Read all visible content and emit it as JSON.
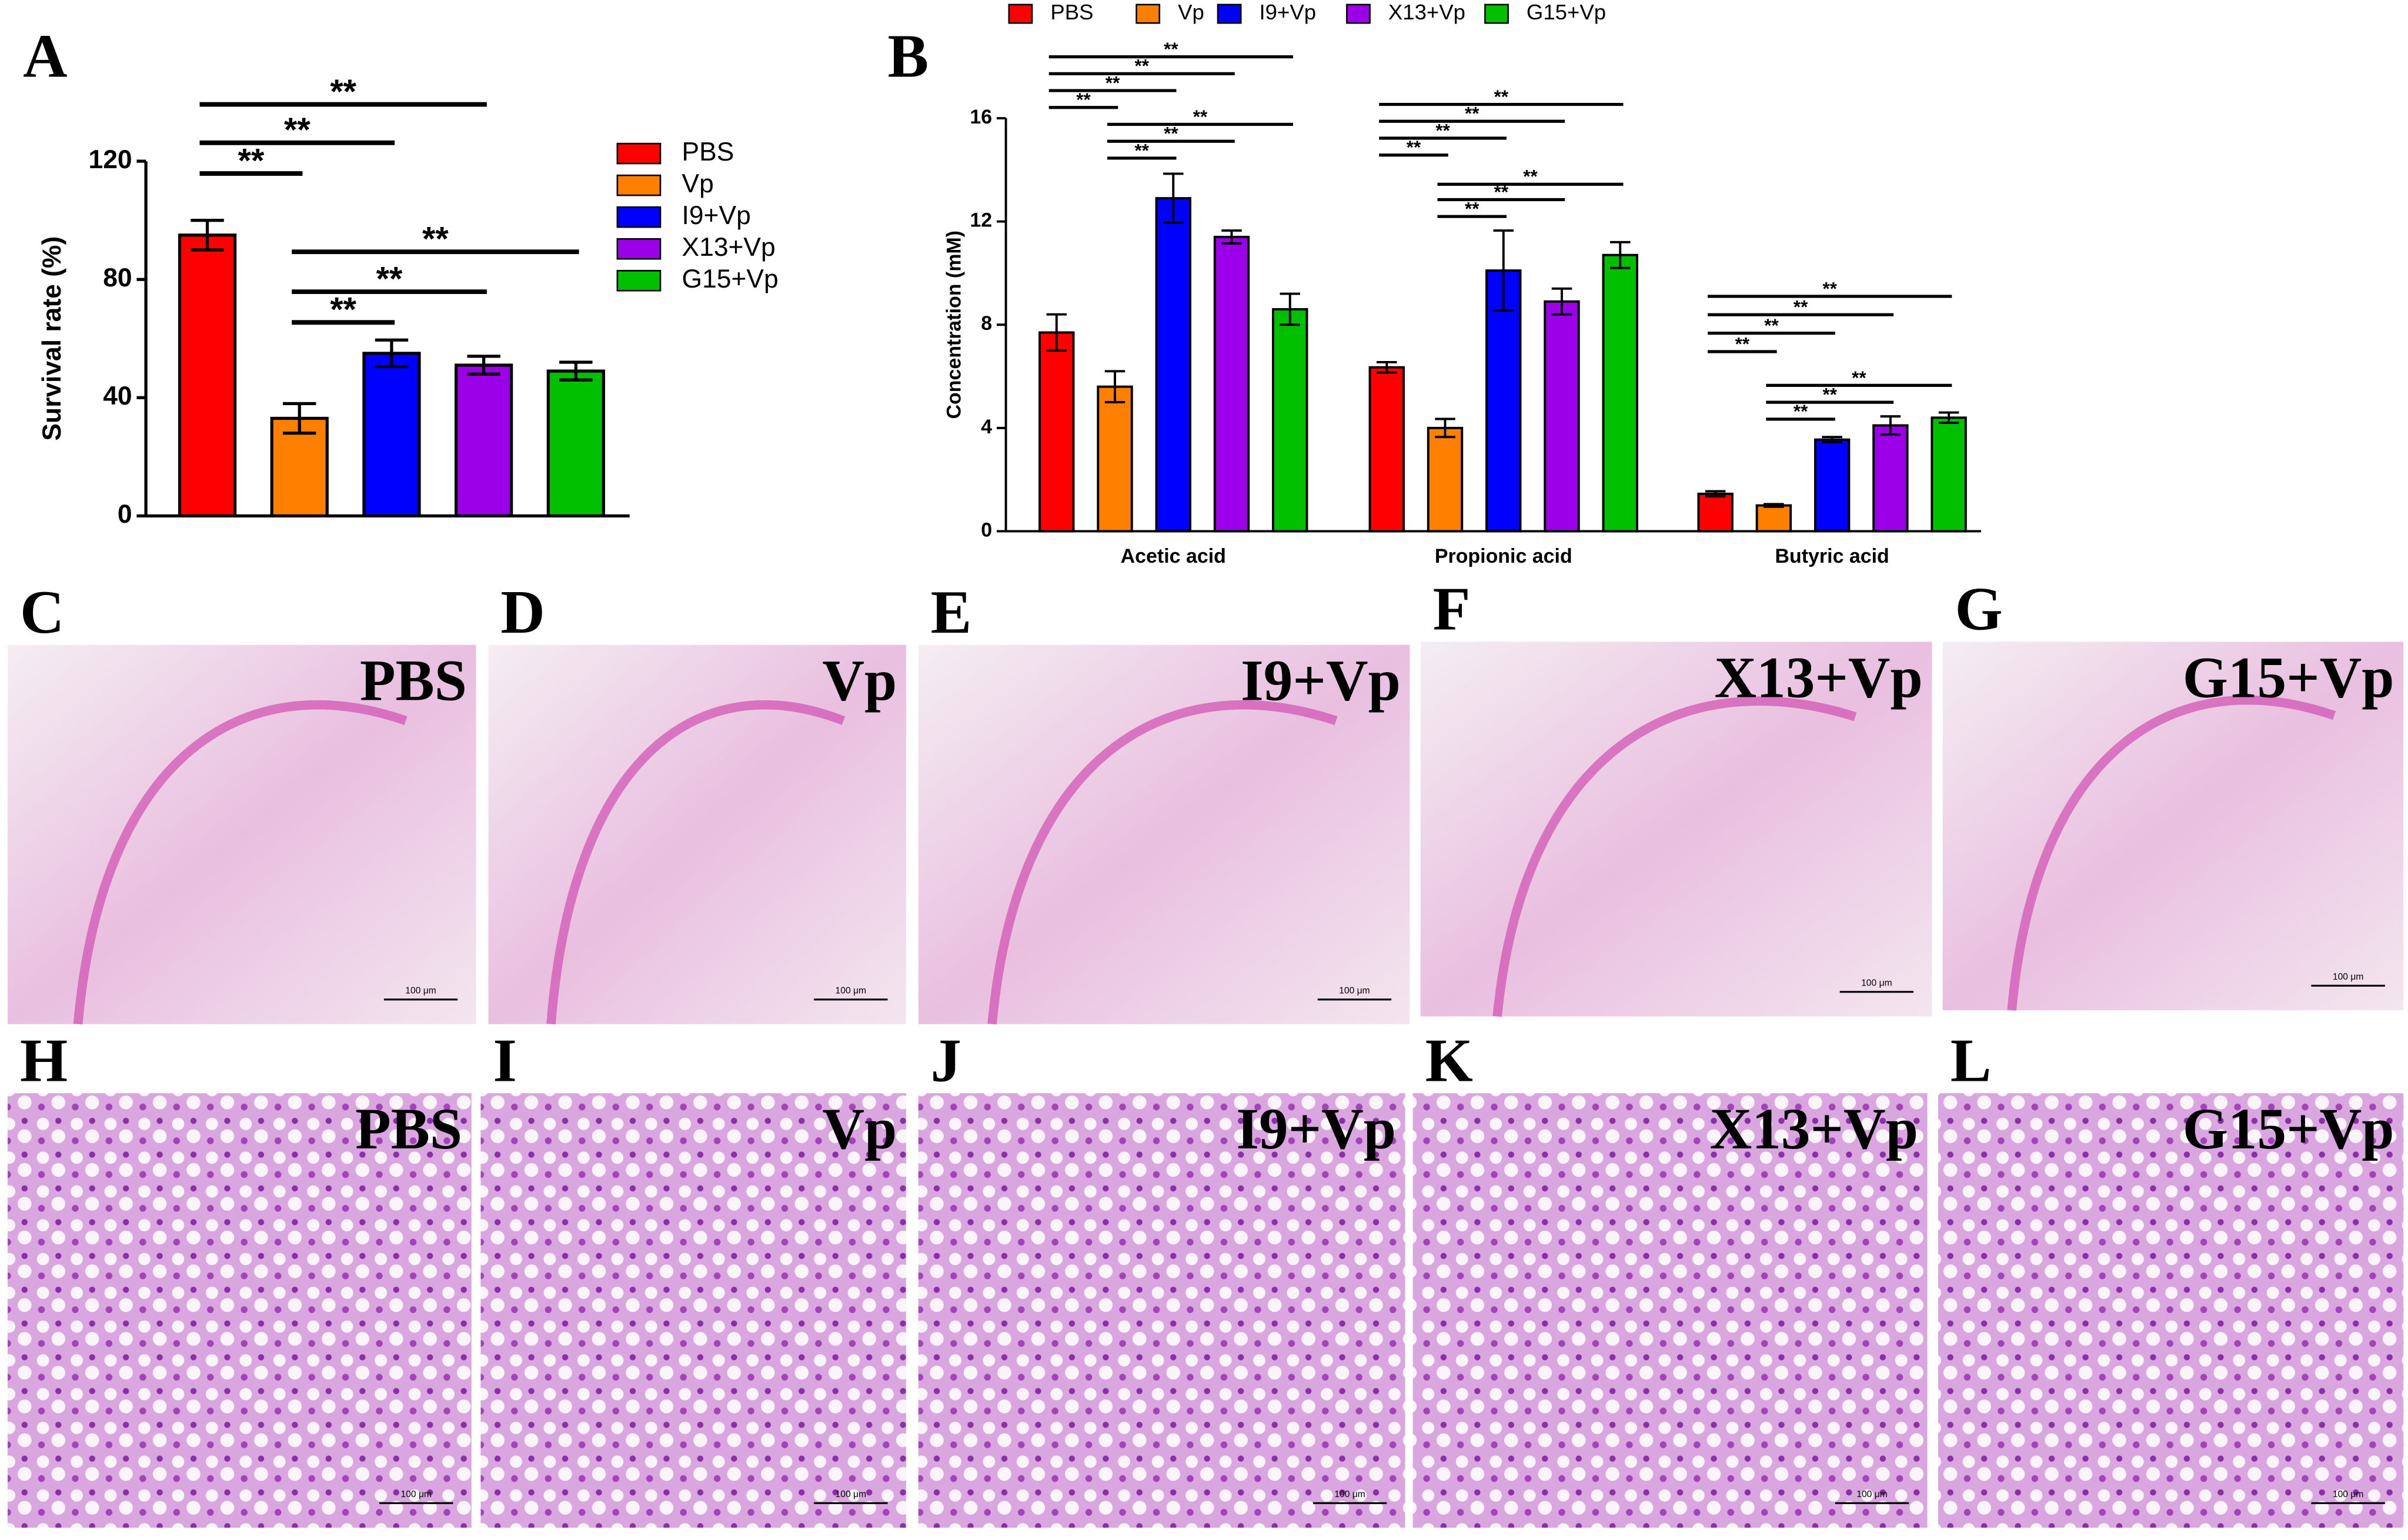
{
  "panel_labels": [
    "A",
    "B"
  ],
  "chart_data": [
    {
      "type": "bar",
      "ylabel": "Survival rate (%)",
      "categories": [
        null
      ],
      "ylim": [
        0,
        120
      ],
      "yticks": [
        0,
        40,
        80,
        120
      ],
      "legend": "right",
      "series": [
        {
          "name": "PBS",
          "color": "#ff0000",
          "values": [
            95
          ],
          "errors": [
            5
          ]
        },
        {
          "name": "Vp",
          "color": "#ff7f00",
          "values": [
            33
          ],
          "errors": [
            5
          ]
        },
        {
          "name": "I9+Vp",
          "color": "#0000ff",
          "values": [
            55
          ],
          "errors": [
            4.5
          ]
        },
        {
          "name": "X13+Vp",
          "color": "#9b00e8",
          "values": [
            51
          ],
          "errors": [
            3
          ]
        },
        {
          "name": "G15+Vp",
          "color": "#00c000",
          "values": [
            49
          ],
          "errors": [
            3
          ]
        }
      ],
      "annotations": [
        "**",
        "**",
        "**",
        "**",
        "**",
        "**"
      ]
    },
    {
      "type": "bar",
      "ylabel": "Concentration (mM)",
      "categories": [
        "Acetic acid",
        "Propionic acid",
        "Butyric acid"
      ],
      "ylim": [
        0,
        16
      ],
      "yticks": [
        0,
        4,
        8,
        12,
        16
      ],
      "legend": "top",
      "series": [
        {
          "name": "PBS",
          "color": "#ff0000",
          "values": [
            7.7,
            6.35,
            1.45
          ],
          "errors": [
            0.7,
            0.2,
            0.1
          ]
        },
        {
          "name": "Vp",
          "color": "#ff7f00",
          "values": [
            5.6,
            4.0,
            1.0
          ],
          "errors": [
            0.6,
            0.35,
            0.05
          ]
        },
        {
          "name": "I9+Vp",
          "color": "#0000ff",
          "values": [
            12.9,
            10.1,
            3.55
          ],
          "errors": [
            0.95,
            1.55,
            0.1
          ]
        },
        {
          "name": "X13+Vp",
          "color": "#9b00e8",
          "values": [
            11.4,
            8.9,
            4.1
          ],
          "errors": [
            0.25,
            0.5,
            0.35
          ]
        },
        {
          "name": "G15+Vp",
          "color": "#00c000",
          "values": [
            8.6,
            10.7,
            4.4
          ],
          "errors": [
            0.6,
            0.5,
            0.2
          ]
        }
      ],
      "annotations": [
        "**",
        "**",
        "**",
        "**",
        "**",
        "**",
        "**",
        "**",
        "**",
        "**",
        "**",
        "**",
        "**",
        "**",
        "**",
        "**",
        "**",
        "**",
        "**",
        "**",
        "**"
      ]
    }
  ],
  "micrographs": [
    {
      "panel": "C",
      "label": "PBS",
      "scale": "100 μm"
    },
    {
      "panel": "D",
      "label": "Vp",
      "scale": "100 μm"
    },
    {
      "panel": "E",
      "label": "I9+Vp",
      "scale": "100 μm"
    },
    {
      "panel": "F",
      "label": "X13+Vp",
      "scale": "100 μm"
    },
    {
      "panel": "G",
      "label": "G15+Vp",
      "scale": "100 μm"
    },
    {
      "panel": "H",
      "label": "PBS",
      "scale": "100 μm"
    },
    {
      "panel": "I",
      "label": "Vp",
      "scale": "100 μm"
    },
    {
      "panel": "J",
      "label": "I9+Vp",
      "scale": "100 μm"
    },
    {
      "panel": "K",
      "label": "X13+Vp",
      "scale": "100 μm"
    },
    {
      "panel": "L",
      "label": "G15+Vp",
      "scale": "100 μm"
    }
  ]
}
